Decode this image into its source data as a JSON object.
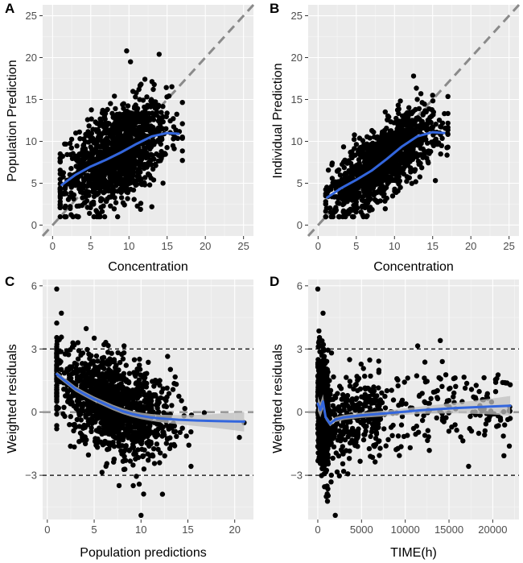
{
  "chart_data": [
    {
      "panel": "A",
      "type": "scatter",
      "xlabel": "Concentration",
      "ylabel": "Population Prediction",
      "xlim": [
        -1.3,
        26.3
      ],
      "ylim": [
        -1.3,
        26.3
      ],
      "xticks": [
        0,
        5,
        10,
        15,
        20,
        25
      ],
      "yticks": [
        0,
        5,
        10,
        15,
        20,
        25
      ],
      "points": {
        "n": 1300,
        "x_range": [
          1,
          17
        ],
        "y_range": [
          1,
          20.8
        ],
        "x_center": 8.5,
        "y_center": 8.5
      },
      "smooth": {
        "x": [
          1.2,
          3,
          5,
          7,
          9,
          11,
          13,
          15,
          16.5
        ],
        "y": [
          4.8,
          6.0,
          7.0,
          7.8,
          8.7,
          9.7,
          10.6,
          11.0,
          10.9
        ]
      },
      "reference_lines": [
        "identity y = x (dashed)"
      ]
    },
    {
      "panel": "B",
      "type": "scatter",
      "xlabel": "Concentration",
      "ylabel": "Individual Prediction",
      "xlim": [
        -1.3,
        26.3
      ],
      "ylim": [
        -1.3,
        26.3
      ],
      "xticks": [
        0,
        5,
        10,
        15,
        20,
        25
      ],
      "yticks": [
        0,
        5,
        10,
        15,
        20,
        25
      ],
      "points": {
        "n": 1300,
        "x_range": [
          1,
          17
        ],
        "y_range": [
          1,
          17.8
        ],
        "x_center": 8.5,
        "y_center": 8.2
      },
      "smooth": {
        "x": [
          1.2,
          3,
          5,
          7,
          9,
          11,
          13,
          15,
          16.5
        ],
        "y": [
          3.3,
          4.4,
          5.4,
          6.5,
          7.9,
          9.4,
          10.6,
          11.1,
          11.0
        ]
      },
      "reference_lines": [
        "identity y = x (dashed)"
      ]
    },
    {
      "panel": "C",
      "type": "scatter",
      "xlabel": "Population predictions",
      "ylabel": "Weighted residuals",
      "xlim": [
        -0.5,
        22
      ],
      "ylim": [
        -5.1,
        6.3
      ],
      "xticks": [
        0,
        5,
        10,
        15,
        20
      ],
      "yticks": [
        -3,
        0,
        3,
        6
      ],
      "points": {
        "n": 1300,
        "x_range": [
          1,
          21
        ],
        "y_range": [
          -4.9,
          5.9
        ]
      },
      "smooth": {
        "x": [
          1,
          2,
          3,
          4,
          5,
          6,
          7,
          8,
          9,
          10,
          11,
          12,
          14,
          16,
          18,
          20,
          21
        ],
        "y": [
          1.8,
          1.45,
          1.1,
          0.85,
          0.62,
          0.42,
          0.22,
          0.05,
          -0.08,
          -0.18,
          -0.25,
          -0.3,
          -0.36,
          -0.4,
          -0.42,
          -0.44,
          -0.45
        ]
      },
      "reference_lines": [
        "y = 3 (dashed)",
        "y = 0 (dashed)",
        "y = -3 (dashed)"
      ]
    },
    {
      "panel": "D",
      "type": "scatter",
      "xlabel": "TIME(h)",
      "ylabel": "Weighted residuals",
      "xlim": [
        -1100,
        23000
      ],
      "ylim": [
        -5.1,
        6.3
      ],
      "xticks": [
        0,
        5000,
        10000,
        15000,
        20000
      ],
      "yticks": [
        -3,
        0,
        3,
        6
      ],
      "points": {
        "n": 1200,
        "x_range": [
          0,
          22000
        ],
        "y_range": [
          -4.9,
          5.9
        ]
      },
      "smooth": {
        "x": [
          0,
          300,
          600,
          900,
          1400,
          2000,
          3000,
          5000,
          8000,
          12000,
          16000,
          20000,
          22000
        ],
        "y": [
          0.4,
          0.1,
          0.5,
          -0.25,
          -0.55,
          -0.35,
          -0.25,
          -0.15,
          -0.05,
          0.1,
          0.2,
          0.27,
          0.3
        ]
      },
      "reference_lines": [
        "y = 3 (dashed)",
        "y = 0 (dashed)",
        "y = -3 (dashed)"
      ]
    }
  ]
}
